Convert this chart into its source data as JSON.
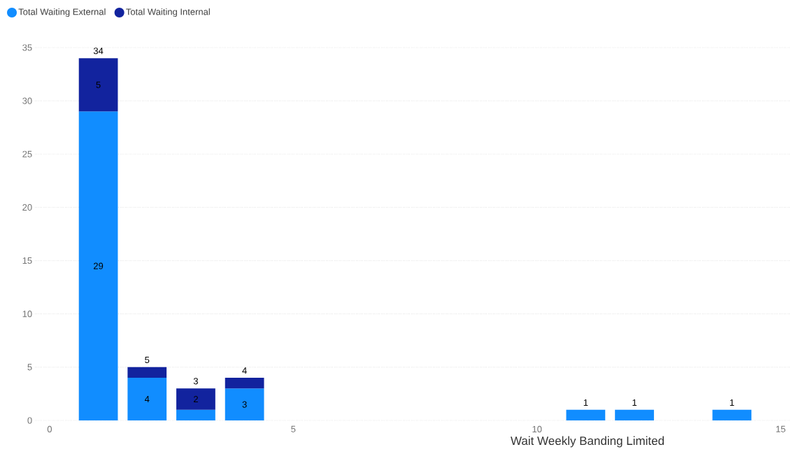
{
  "chart_data": {
    "type": "bar",
    "stacked": true,
    "xlabel": "Wait Weekly Banding Limited",
    "x": [
      1,
      2,
      3,
      4,
      11,
      12,
      14
    ],
    "series": [
      {
        "name": "Total Waiting External",
        "color": "#118dff",
        "values": [
          29,
          4,
          1,
          3,
          1,
          1,
          1
        ],
        "value_labels": [
          "29",
          "4",
          null,
          "3",
          null,
          null,
          null
        ]
      },
      {
        "name": "Total Waiting Internal",
        "color": "#12239e",
        "values": [
          5,
          1,
          2,
          1,
          null,
          null,
          null
        ],
        "value_labels": [
          "5",
          null,
          "2",
          null,
          null,
          null,
          null
        ]
      }
    ],
    "totals": [
      "34",
      "5",
      "3",
      "4",
      "1",
      "1",
      "1"
    ],
    "xlim": [
      -0.3,
      15.2
    ],
    "xticks": [
      0,
      5,
      10,
      15
    ],
    "ylim": [
      0,
      35
    ],
    "yticks": [
      0,
      5,
      10,
      15,
      20,
      25,
      30,
      35
    ],
    "grid": "y",
    "legend": "top left"
  }
}
